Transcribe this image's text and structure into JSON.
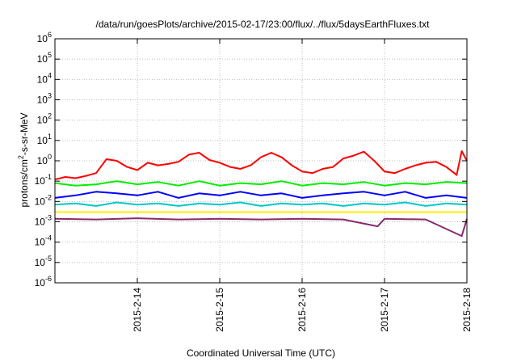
{
  "chart_data": {
    "type": "line",
    "title": "/data/run/goesPlots/archive/2015-02-17/23:00/flux/../flux/5daysEarthFluxes.txt",
    "xlabel": "Coordinated Universal Time (UTC)",
    "ylabel": {
      "main": "protons/cm",
      "superscript": "2",
      "tail": "-s-sr-MeV"
    },
    "y_scale": "log",
    "ylim": [
      1e-06,
      1000000.0
    ],
    "y_ticks": [
      {
        "value": 1e-06,
        "base": "10",
        "exp": "-6"
      },
      {
        "value": 1e-05,
        "base": "10",
        "exp": "-5"
      },
      {
        "value": 0.0001,
        "base": "10",
        "exp": "-4"
      },
      {
        "value": 0.001,
        "base": "10",
        "exp": "-3"
      },
      {
        "value": 0.01,
        "base": "10",
        "exp": "-2"
      },
      {
        "value": 0.1,
        "base": "10",
        "exp": "-1"
      },
      {
        "value": 1,
        "base": "10",
        "exp": "0"
      },
      {
        "value": 10,
        "base": "10",
        "exp": "1"
      },
      {
        "value": 100,
        "base": "10",
        "exp": "2"
      },
      {
        "value": 1000,
        "base": "10",
        "exp": "3"
      },
      {
        "value": 10000,
        "base": "10",
        "exp": "4"
      },
      {
        "value": 100000,
        "base": "10",
        "exp": "5"
      },
      {
        "value": 1000000,
        "base": "10",
        "exp": "6"
      }
    ],
    "xlim": [
      "2015-02-13T00:00",
      "2015-02-18T00:00"
    ],
    "x_ticks": [
      {
        "value": "2015-02-14T00:00",
        "label": "2015-2-14"
      },
      {
        "value": "2015-02-15T00:00",
        "label": "2015-2-15"
      },
      {
        "value": "2015-02-16T00:00",
        "label": "2015-2-16"
      },
      {
        "value": "2015-02-17T00:00",
        "label": "2015-2-17"
      },
      {
        "value": "2015-02-18T00:00",
        "label": "2015-2-18"
      }
    ],
    "grid": true,
    "legend": "none",
    "series": [
      {
        "color": "#ff0000",
        "points": [
          [
            "2015-02-13T00:00",
            0.12
          ],
          [
            "2015-02-13T03:00",
            0.16
          ],
          [
            "2015-02-13T06:00",
            0.14
          ],
          [
            "2015-02-13T09:00",
            0.18
          ],
          [
            "2015-02-13T12:00",
            0.25
          ],
          [
            "2015-02-13T15:00",
            1.2
          ],
          [
            "2015-02-13T18:00",
            1.0
          ],
          [
            "2015-02-13T21:00",
            0.5
          ],
          [
            "2015-02-14T00:00",
            0.35
          ],
          [
            "2015-02-14T03:00",
            0.8
          ],
          [
            "2015-02-14T06:00",
            0.6
          ],
          [
            "2015-02-14T09:00",
            0.7
          ],
          [
            "2015-02-14T12:00",
            0.9
          ],
          [
            "2015-02-14T15:00",
            2.0
          ],
          [
            "2015-02-14T18:00",
            2.5
          ],
          [
            "2015-02-14T21:00",
            1.1
          ],
          [
            "2015-02-15T00:00",
            0.8
          ],
          [
            "2015-02-15T03:00",
            0.5
          ],
          [
            "2015-02-15T06:00",
            0.4
          ],
          [
            "2015-02-15T09:00",
            0.6
          ],
          [
            "2015-02-15T12:00",
            1.5
          ],
          [
            "2015-02-15T15:00",
            2.5
          ],
          [
            "2015-02-15T18:00",
            1.5
          ],
          [
            "2015-02-15T21:00",
            0.6
          ],
          [
            "2015-02-16T00:00",
            0.3
          ],
          [
            "2015-02-16T03:00",
            0.25
          ],
          [
            "2015-02-16T06:00",
            0.4
          ],
          [
            "2015-02-16T09:00",
            0.5
          ],
          [
            "2015-02-16T12:00",
            1.3
          ],
          [
            "2015-02-16T15:00",
            1.8
          ],
          [
            "2015-02-16T18:00",
            2.8
          ],
          [
            "2015-02-16T21:00",
            1.0
          ],
          [
            "2015-02-17T00:00",
            0.3
          ],
          [
            "2015-02-17T03:00",
            0.25
          ],
          [
            "2015-02-17T06:00",
            0.4
          ],
          [
            "2015-02-17T09:00",
            0.6
          ],
          [
            "2015-02-17T12:00",
            0.8
          ],
          [
            "2015-02-17T15:00",
            0.9
          ],
          [
            "2015-02-17T18:00",
            0.5
          ],
          [
            "2015-02-17T21:00",
            0.2
          ],
          [
            "2015-02-17T22:30",
            3.0
          ],
          [
            "2015-02-18T00:00",
            1.0
          ]
        ]
      },
      {
        "color": "#00ee00",
        "points": [
          [
            "2015-02-13T00:00",
            0.08
          ],
          [
            "2015-02-13T06:00",
            0.06
          ],
          [
            "2015-02-13T12:00",
            0.07
          ],
          [
            "2015-02-13T18:00",
            0.1
          ],
          [
            "2015-02-14T00:00",
            0.07
          ],
          [
            "2015-02-14T06:00",
            0.09
          ],
          [
            "2015-02-14T12:00",
            0.06
          ],
          [
            "2015-02-14T18:00",
            0.1
          ],
          [
            "2015-02-15T00:00",
            0.06
          ],
          [
            "2015-02-15T06:00",
            0.08
          ],
          [
            "2015-02-15T12:00",
            0.07
          ],
          [
            "2015-02-15T18:00",
            0.1
          ],
          [
            "2015-02-16T00:00",
            0.06
          ],
          [
            "2015-02-16T06:00",
            0.08
          ],
          [
            "2015-02-16T12:00",
            0.07
          ],
          [
            "2015-02-16T18:00",
            0.09
          ],
          [
            "2015-02-17T00:00",
            0.06
          ],
          [
            "2015-02-17T06:00",
            0.08
          ],
          [
            "2015-02-17T12:00",
            0.07
          ],
          [
            "2015-02-17T18:00",
            0.09
          ],
          [
            "2015-02-18T00:00",
            0.08
          ]
        ]
      },
      {
        "color": "#0000ff",
        "points": [
          [
            "2015-02-13T00:00",
            0.015
          ],
          [
            "2015-02-13T06:00",
            0.02
          ],
          [
            "2015-02-13T12:00",
            0.03
          ],
          [
            "2015-02-13T18:00",
            0.025
          ],
          [
            "2015-02-14T00:00",
            0.02
          ],
          [
            "2015-02-14T06:00",
            0.03
          ],
          [
            "2015-02-14T12:00",
            0.015
          ],
          [
            "2015-02-14T18:00",
            0.025
          ],
          [
            "2015-02-15T00:00",
            0.02
          ],
          [
            "2015-02-15T06:00",
            0.03
          ],
          [
            "2015-02-15T12:00",
            0.02
          ],
          [
            "2015-02-15T18:00",
            0.025
          ],
          [
            "2015-02-16T00:00",
            0.015
          ],
          [
            "2015-02-16T06:00",
            0.02
          ],
          [
            "2015-02-16T12:00",
            0.025
          ],
          [
            "2015-02-16T18:00",
            0.03
          ],
          [
            "2015-02-17T00:00",
            0.02
          ],
          [
            "2015-02-17T06:00",
            0.03
          ],
          [
            "2015-02-17T12:00",
            0.015
          ],
          [
            "2015-02-17T18:00",
            0.02
          ],
          [
            "2015-02-18T00:00",
            0.015
          ]
        ]
      },
      {
        "color": "#00c8c8",
        "points": [
          [
            "2015-02-13T00:00",
            0.007
          ],
          [
            "2015-02-13T06:00",
            0.008
          ],
          [
            "2015-02-13T12:00",
            0.006
          ],
          [
            "2015-02-13T18:00",
            0.009
          ],
          [
            "2015-02-14T00:00",
            0.007
          ],
          [
            "2015-02-14T06:00",
            0.008
          ],
          [
            "2015-02-14T12:00",
            0.006
          ],
          [
            "2015-02-14T18:00",
            0.008
          ],
          [
            "2015-02-15T00:00",
            0.007
          ],
          [
            "2015-02-15T06:00",
            0.009
          ],
          [
            "2015-02-15T12:00",
            0.006
          ],
          [
            "2015-02-15T18:00",
            0.008
          ],
          [
            "2015-02-16T00:00",
            0.007
          ],
          [
            "2015-02-16T06:00",
            0.008
          ],
          [
            "2015-02-16T12:00",
            0.006
          ],
          [
            "2015-02-16T18:00",
            0.008
          ],
          [
            "2015-02-17T00:00",
            0.007
          ],
          [
            "2015-02-17T06:00",
            0.009
          ],
          [
            "2015-02-17T12:00",
            0.006
          ],
          [
            "2015-02-17T18:00",
            0.008
          ],
          [
            "2015-02-18T00:00",
            0.007
          ]
        ]
      },
      {
        "color": "#ffee00",
        "points": [
          [
            "2015-02-13T00:00",
            0.003
          ],
          [
            "2015-02-14T00:00",
            0.003
          ],
          [
            "2015-02-15T00:00",
            0.003
          ],
          [
            "2015-02-16T00:00",
            0.003
          ],
          [
            "2015-02-17T00:00",
            0.003
          ],
          [
            "2015-02-18T00:00",
            0.003
          ]
        ]
      },
      {
        "color": "#8b2a6a",
        "points": [
          [
            "2015-02-13T00:00",
            0.0014
          ],
          [
            "2015-02-13T12:00",
            0.0013
          ],
          [
            "2015-02-14T00:00",
            0.0015
          ],
          [
            "2015-02-14T12:00",
            0.0013
          ],
          [
            "2015-02-15T00:00",
            0.0014
          ],
          [
            "2015-02-15T12:00",
            0.0013
          ],
          [
            "2015-02-16T00:00",
            0.0014
          ],
          [
            "2015-02-16T12:00",
            0.0013
          ],
          [
            "2015-02-16T22:00",
            0.0006
          ],
          [
            "2015-02-17T00:00",
            0.0014
          ],
          [
            "2015-02-17T12:00",
            0.0013
          ],
          [
            "2015-02-17T22:30",
            0.0002
          ],
          [
            "2015-02-18T00:00",
            0.0014
          ]
        ]
      }
    ]
  }
}
